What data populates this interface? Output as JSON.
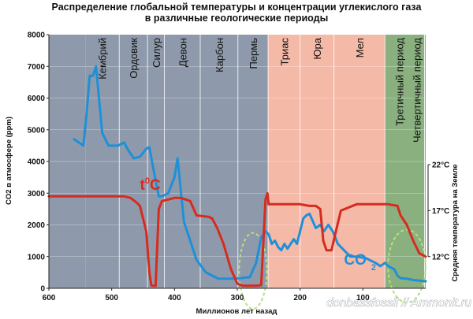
{
  "chart_data": {
    "type": "line",
    "title": "Распределение глобальной температуры и концентрации углекислого газа",
    "subtitle": "в различные геологические периоды",
    "xlabel": "Миллионов лет назад",
    "ylabel": "CO2 в атмосфере (ppm)",
    "y2label": "Средняя температура на Земле",
    "xlim": [
      600,
      0
    ],
    "ylim": [
      0,
      8000
    ],
    "x_ticks": [
      "600",
      "500",
      "400",
      "300",
      "200",
      "100"
    ],
    "y_ticks": [
      "0",
      "1000",
      "2000",
      "3000",
      "4000",
      "5000",
      "6000",
      "7000",
      "8000"
    ],
    "y2_ticks": [
      "22°C",
      "17°C",
      "12°C"
    ],
    "y2_tick_values": [
      22,
      17,
      12
    ],
    "grid": true,
    "periods": [
      {
        "name": "Кембрий",
        "from": 542,
        "to": 488,
        "color": "#8e9aab"
      },
      {
        "name": "Ордовик",
        "from": 488,
        "to": 443,
        "color": "#8e9aab"
      },
      {
        "name": "Силур",
        "from": 443,
        "to": 416,
        "color": "#8e9aab"
      },
      {
        "name": "Девон",
        "from": 416,
        "to": 359,
        "color": "#8e9aab"
      },
      {
        "name": "Карбон",
        "from": 359,
        "to": 299,
        "color": "#8e9aab"
      },
      {
        "name": "Пермь",
        "from": 299,
        "to": 251,
        "color": "#8e9aab"
      },
      {
        "name": "Триас",
        "from": 251,
        "to": 200,
        "color": "#f5b9a8"
      },
      {
        "name": "Юра",
        "from": 200,
        "to": 146,
        "color": "#f5b9a8"
      },
      {
        "name": "Мел",
        "from": 146,
        "to": 65,
        "color": "#f5b9a8"
      },
      {
        "name": "Третичный период",
        "from": 65,
        "to": 1.8,
        "color": "#8ab080"
      },
      {
        "name": "Четвертичный период",
        "from": 1.8,
        "to": 0,
        "color": "#8ab080"
      }
    ],
    "series": [
      {
        "name": "CO2",
        "color": "#1e90d8",
        "x": [
          560,
          545,
          540,
          535,
          530,
          525,
          515,
          505,
          490,
          480,
          475,
          465,
          455,
          445,
          440,
          435,
          425,
          420,
          410,
          400,
          395,
          385,
          380,
          375,
          365,
          350,
          330,
          315,
          305,
          295,
          280,
          270,
          262,
          255,
          250,
          245,
          240,
          235,
          230,
          225,
          220,
          210,
          205,
          195,
          190,
          185,
          175,
          168,
          162,
          155,
          148,
          140,
          130,
          120,
          110,
          95,
          80,
          72,
          65,
          58,
          50,
          45,
          40,
          30,
          20,
          10,
          0
        ],
        "values": [
          4700,
          4500,
          5500,
          6700,
          6700,
          7000,
          4900,
          4500,
          4500,
          4600,
          4400,
          4100,
          4150,
          4400,
          4450,
          3900,
          2900,
          2900,
          3000,
          3500,
          4100,
          2100,
          1800,
          1500,
          900,
          500,
          300,
          300,
          300,
          320,
          350,
          800,
          1600,
          1800,
          1700,
          1400,
          1500,
          1300,
          1200,
          1400,
          1250,
          1550,
          1400,
          2200,
          2300,
          2350,
          1900,
          2000,
          1800,
          2000,
          1800,
          1400,
          1200,
          1000,
          1000,
          950,
          800,
          700,
          800,
          680,
          600,
          400,
          320,
          300,
          260,
          240,
          220
        ]
      },
      {
        "name": "t°C",
        "color": "#d62b1f",
        "x": [
          600,
          480,
          470,
          460,
          455,
          445,
          440,
          437,
          435,
          430,
          425,
          420,
          410,
          400,
          390,
          382,
          375,
          365,
          345,
          340,
          332,
          322,
          310,
          300,
          292,
          285,
          280,
          270,
          262,
          255,
          252,
          250,
          240,
          200,
          185,
          175,
          168,
          163,
          158,
          150,
          140,
          135,
          110,
          60,
          45,
          40,
          30,
          20,
          10,
          0
        ],
        "values": [
          2900,
          2900,
          2850,
          2700,
          2600,
          1800,
          500,
          100,
          80,
          80,
          2500,
          2750,
          2800,
          2850,
          2850,
          2800,
          2750,
          2300,
          2250,
          2200,
          1900,
          1400,
          600,
          150,
          80,
          80,
          80,
          80,
          100,
          2800,
          3000,
          2650,
          2650,
          2650,
          2600,
          2600,
          2500,
          1500,
          1200,
          1200,
          2050,
          2450,
          2650,
          2650,
          2600,
          2300,
          2000,
          1500,
          1100,
          1000
        ]
      }
    ],
    "annotations": [
      {
        "text": "t",
        "sup": "0",
        "after": "C",
        "x": 455,
        "y": 3100,
        "color": "#d62b1f"
      },
      {
        "text": "CO",
        "sub": "2",
        "x": 130,
        "y": 750,
        "color": "#1e90d8"
      }
    ],
    "ellipses": [
      {
        "cx": 275,
        "cy": 550,
        "rx": 22,
        "ry": 1200
      },
      {
        "cx": 30,
        "cy": 700,
        "rx": 30,
        "ry": 1150
      }
    ],
    "watermark": "donbassfossil // Ammonit.ru"
  }
}
